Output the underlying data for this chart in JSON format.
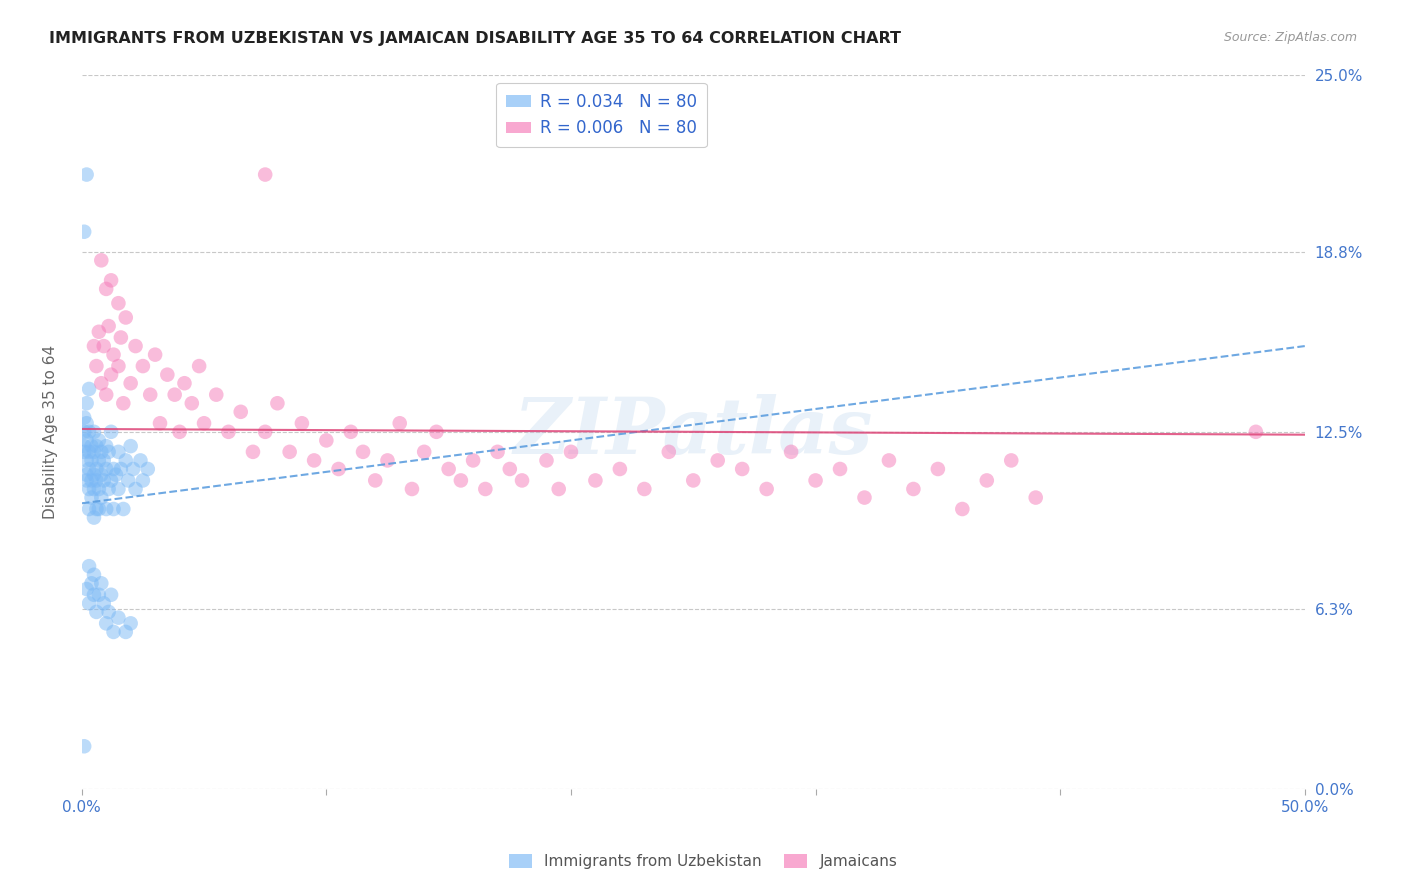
{
  "title": "IMMIGRANTS FROM UZBEKISTAN VS JAMAICAN DISABILITY AGE 35 TO 64 CORRELATION CHART",
  "source": "Source: ZipAtlas.com",
  "ylabel": "Disability Age 35 to 64",
  "xlim": [
    0.0,
    0.5
  ],
  "ylim": [
    0.0,
    0.25
  ],
  "ytick_labels": [
    "0.0%",
    "6.3%",
    "12.5%",
    "18.8%",
    "25.0%"
  ],
  "ytick_values": [
    0.0,
    0.063,
    0.125,
    0.188,
    0.25
  ],
  "grid_color": "#c8c8c8",
  "background_color": "#ffffff",
  "series1_color": "#7ab8f5",
  "series2_color": "#f57ab8",
  "trend1_color": "#5599dd",
  "trend2_color": "#dd4477",
  "watermark": "ZIPatlas",
  "blue_x": [
    0.001,
    0.001,
    0.001,
    0.001,
    0.002,
    0.002,
    0.002,
    0.002,
    0.002,
    0.002,
    0.003,
    0.003,
    0.003,
    0.003,
    0.003,
    0.003,
    0.004,
    0.004,
    0.004,
    0.004,
    0.005,
    0.005,
    0.005,
    0.005,
    0.005,
    0.006,
    0.006,
    0.006,
    0.006,
    0.007,
    0.007,
    0.007,
    0.007,
    0.008,
    0.008,
    0.008,
    0.009,
    0.009,
    0.01,
    0.01,
    0.01,
    0.011,
    0.011,
    0.012,
    0.012,
    0.013,
    0.013,
    0.014,
    0.015,
    0.015,
    0.016,
    0.017,
    0.018,
    0.019,
    0.02,
    0.021,
    0.022,
    0.024,
    0.025,
    0.027,
    0.002,
    0.003,
    0.003,
    0.004,
    0.005,
    0.005,
    0.006,
    0.007,
    0.008,
    0.009,
    0.01,
    0.011,
    0.012,
    0.013,
    0.015,
    0.018,
    0.02,
    0.001,
    0.002,
    0.001
  ],
  "blue_y": [
    0.12,
    0.125,
    0.118,
    0.13,
    0.115,
    0.122,
    0.128,
    0.11,
    0.135,
    0.108,
    0.105,
    0.112,
    0.118,
    0.125,
    0.098,
    0.14,
    0.102,
    0.115,
    0.108,
    0.12,
    0.095,
    0.11,
    0.118,
    0.105,
    0.125,
    0.098,
    0.112,
    0.12,
    0.108,
    0.105,
    0.115,
    0.098,
    0.122,
    0.11,
    0.118,
    0.102,
    0.108,
    0.115,
    0.112,
    0.12,
    0.098,
    0.105,
    0.118,
    0.108,
    0.125,
    0.112,
    0.098,
    0.11,
    0.105,
    0.118,
    0.112,
    0.098,
    0.115,
    0.108,
    0.12,
    0.112,
    0.105,
    0.115,
    0.108,
    0.112,
    0.07,
    0.065,
    0.078,
    0.072,
    0.068,
    0.075,
    0.062,
    0.068,
    0.072,
    0.065,
    0.058,
    0.062,
    0.068,
    0.055,
    0.06,
    0.055,
    0.058,
    0.195,
    0.215,
    0.015
  ],
  "pink_x": [
    0.005,
    0.006,
    0.007,
    0.008,
    0.009,
    0.01,
    0.011,
    0.012,
    0.013,
    0.015,
    0.016,
    0.017,
    0.018,
    0.02,
    0.022,
    0.025,
    0.028,
    0.03,
    0.032,
    0.035,
    0.038,
    0.04,
    0.042,
    0.045,
    0.048,
    0.05,
    0.055,
    0.06,
    0.065,
    0.07,
    0.075,
    0.08,
    0.085,
    0.09,
    0.095,
    0.1,
    0.105,
    0.11,
    0.115,
    0.12,
    0.125,
    0.13,
    0.135,
    0.14,
    0.145,
    0.15,
    0.155,
    0.16,
    0.165,
    0.17,
    0.175,
    0.18,
    0.19,
    0.195,
    0.2,
    0.21,
    0.22,
    0.23,
    0.24,
    0.25,
    0.26,
    0.27,
    0.28,
    0.29,
    0.3,
    0.31,
    0.32,
    0.33,
    0.34,
    0.35,
    0.36,
    0.37,
    0.38,
    0.39,
    0.008,
    0.012,
    0.015,
    0.01,
    0.48,
    0.075
  ],
  "pink_y": [
    0.155,
    0.148,
    0.16,
    0.142,
    0.155,
    0.138,
    0.162,
    0.145,
    0.152,
    0.148,
    0.158,
    0.135,
    0.165,
    0.142,
    0.155,
    0.148,
    0.138,
    0.152,
    0.128,
    0.145,
    0.138,
    0.125,
    0.142,
    0.135,
    0.148,
    0.128,
    0.138,
    0.125,
    0.132,
    0.118,
    0.125,
    0.135,
    0.118,
    0.128,
    0.115,
    0.122,
    0.112,
    0.125,
    0.118,
    0.108,
    0.115,
    0.128,
    0.105,
    0.118,
    0.125,
    0.112,
    0.108,
    0.115,
    0.105,
    0.118,
    0.112,
    0.108,
    0.115,
    0.105,
    0.118,
    0.108,
    0.112,
    0.105,
    0.118,
    0.108,
    0.115,
    0.112,
    0.105,
    0.118,
    0.108,
    0.112,
    0.102,
    0.115,
    0.105,
    0.112,
    0.098,
    0.108,
    0.115,
    0.102,
    0.185,
    0.178,
    0.17,
    0.175,
    0.125,
    0.215
  ]
}
